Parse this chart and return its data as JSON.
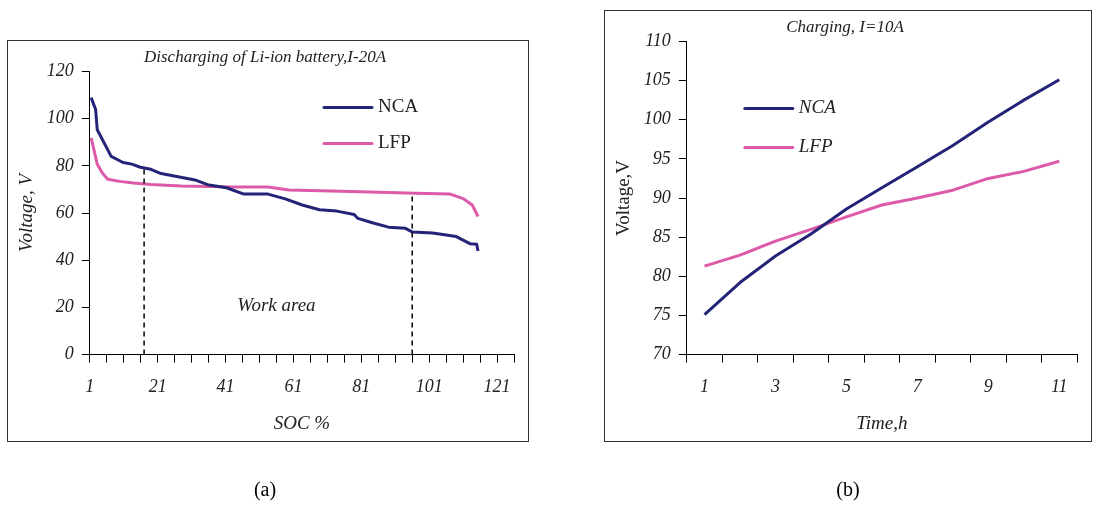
{
  "chart_data": [
    {
      "type": "line",
      "title": "Discharging of Li-ion battery,I-20A",
      "xlabel": "SOC %",
      "ylabel": "Voltage, V",
      "annotations": [
        "Work area",
        "(a)"
      ],
      "xlim": [
        1,
        126
      ],
      "xticks": [
        1,
        {
          "value": 6,
          "label": null
        },
        {
          "value": 11,
          "label": null
        },
        {
          "value": 16,
          "label": null
        },
        21,
        {
          "value": 26,
          "label": null
        },
        {
          "value": 31,
          "label": null
        },
        {
          "value": 36,
          "label": null
        },
        41,
        {
          "value": 46,
          "label": null
        },
        {
          "value": 51,
          "label": null
        },
        {
          "value": 56,
          "label": null
        },
        61,
        {
          "value": 66,
          "label": null
        },
        {
          "value": 71,
          "label": null
        },
        {
          "value": 76,
          "label": null
        },
        81,
        {
          "value": 86,
          "label": null
        },
        {
          "value": 91,
          "label": null
        },
        {
          "value": 96,
          "label": null
        },
        101,
        {
          "value": 106,
          "label": null
        },
        {
          "value": 111,
          "label": null
        },
        {
          "value": 116,
          "label": null
        },
        121,
        {
          "value": 126,
          "label": null
        }
      ],
      "ylim": [
        0,
        120
      ],
      "yticks": [
        0,
        20,
        40,
        60,
        80,
        100,
        120
      ],
      "grid": false,
      "legend": "top right",
      "marker": "none",
      "ref_lines": [
        {
          "axis": "x",
          "value": 17,
          "line_style": "dashed",
          "color": "#000000"
        },
        {
          "axis": "x",
          "value": 96,
          "line_style": "dashed",
          "color": "#000000"
        }
      ],
      "series": [
        {
          "name": "NCA",
          "color": "#232477",
          "x": [
            1.4,
            2.7,
            3.2,
            7.3,
            10.8,
            13.4,
            15.9,
            19,
            22,
            27,
            32,
            35.7,
            41.3,
            46.4,
            53.5,
            58.6,
            63.6,
            68.7,
            73.8,
            78.9,
            80,
            84,
            89,
            94,
            96,
            102,
            109,
            113,
            115,
            115.4
          ],
          "values": [
            108.9,
            104,
            95.3,
            84,
            81.4,
            80.7,
            79.4,
            78.5,
            76.7,
            75.4,
            74,
            72,
            70.7,
            68,
            68,
            66,
            63.4,
            61.4,
            60.8,
            59.4,
            57.7,
            56,
            54,
            53.5,
            52,
            51.5,
            50,
            47,
            46.8,
            43.9
          ]
        },
        {
          "name": "LFP",
          "color": "#dc5aa8",
          "x": [
            1.4,
            3.2,
            4.8,
            6.3,
            9.8,
            13.9,
            19,
            28,
            43.3,
            53.5,
            59.7,
            78,
            97,
            107,
            111,
            113.7,
            115.4
          ],
          "values": [
            91.8,
            80.7,
            76.7,
            74.3,
            73.4,
            72.7,
            72.1,
            71.4,
            71,
            71,
            69.7,
            69.1,
            68.4,
            68.1,
            66.1,
            63.4,
            58.5
          ]
        }
      ]
    },
    {
      "type": "line",
      "title": "Charging, I=10A",
      "xlabel": "Time,h",
      "ylabel": "Voltage,V",
      "annotations": [
        "(b)"
      ],
      "categories": [
        "1",
        null,
        "3",
        null,
        "5",
        null,
        "7",
        null,
        "9",
        null,
        "11"
      ],
      "ylim": [
        70,
        110
      ],
      "yticks": [
        70,
        75,
        80,
        85,
        90,
        95,
        100,
        105,
        110
      ],
      "grid": false,
      "legend": "top left",
      "marker": "none",
      "series": [
        {
          "name": "NCA",
          "color": "#232477",
          "values": [
            75.1,
            79.2,
            82.6,
            85.4,
            88.6,
            91.3,
            94.0,
            96.7,
            99.7,
            102.5,
            105.1
          ]
        },
        {
          "name": "LFP",
          "color": "#dc5aa8",
          "values": [
            81.3,
            82.7,
            84.5,
            86.0,
            87.6,
            89.1,
            90.0,
            91.0,
            92.5,
            93.4,
            94.7
          ]
        }
      ]
    }
  ]
}
